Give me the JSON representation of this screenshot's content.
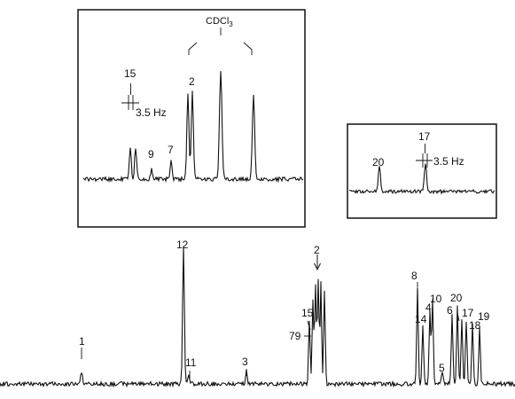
{
  "chart_data": {
    "type": "nmr-spectrum",
    "main_spectrum": {
      "peak_labels": [
        "1",
        "12",
        "11",
        "3",
        "2",
        "15",
        "79",
        "8",
        "14",
        "4",
        "10",
        "5",
        "6",
        "20",
        "17",
        "18",
        "19"
      ]
    },
    "insets": [
      {
        "solvent_label": "CDCl3",
        "peak_labels": [
          "15",
          "9",
          "7",
          "2"
        ],
        "coupling_label": "3.5 Hz"
      },
      {
        "peak_labels": [
          "20",
          "17"
        ],
        "coupling_label": "3.5 Hz"
      }
    ]
  }
}
